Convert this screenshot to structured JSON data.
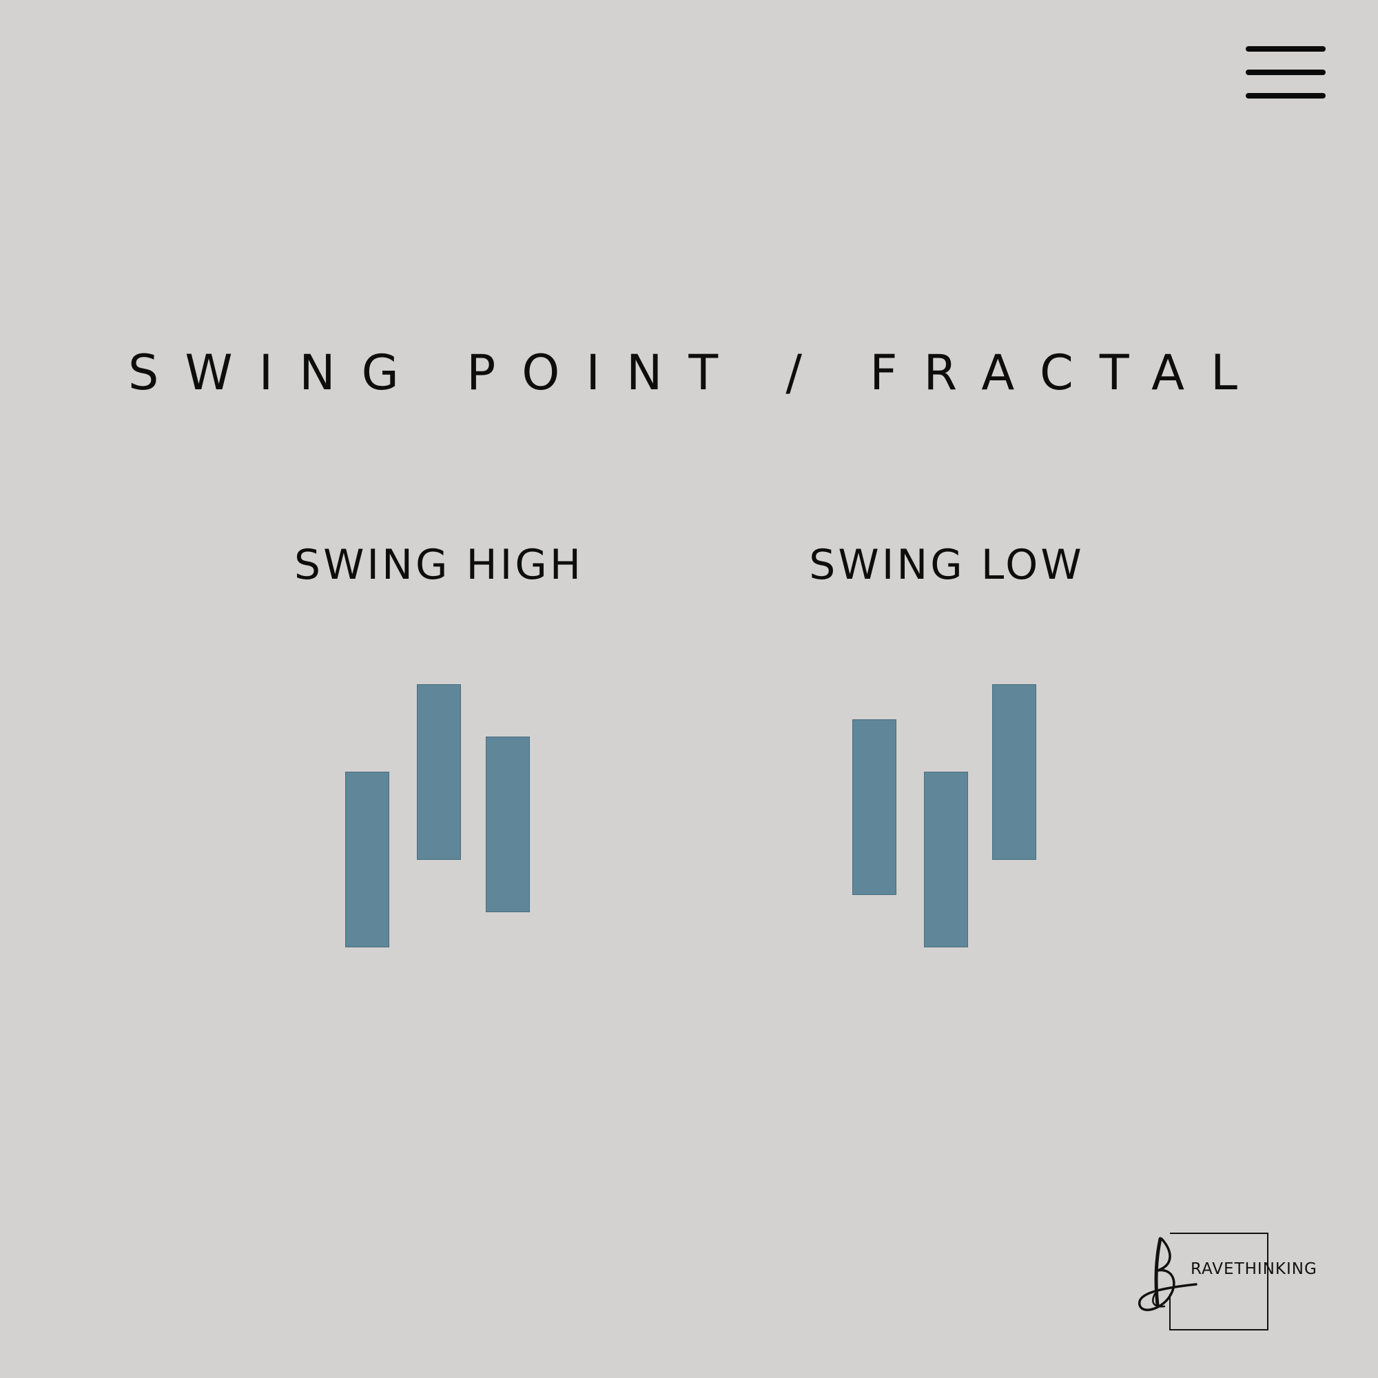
{
  "header": {
    "menu_icon": "hamburger-menu-icon"
  },
  "title": "SWING POINT / FRACTAL",
  "panels": [
    {
      "label": "SWING HIGH",
      "candles": [
        {
          "low": 0,
          "high": 5
        },
        {
          "low": 2.5,
          "high": 7.5
        },
        {
          "low": 1,
          "high": 6
        }
      ]
    },
    {
      "label": "SWING LOW",
      "candles": [
        {
          "low": 1.5,
          "high": 6.5
        },
        {
          "low": 0,
          "high": 5
        },
        {
          "low": 2.5,
          "high": 7.5
        }
      ]
    }
  ],
  "colors": {
    "background": "#d3d2d0",
    "candle": "#5f8699",
    "text": "#0d0d0d"
  },
  "logo": {
    "text": "RAVETHINKING",
    "mark": "handwritten-b"
  }
}
